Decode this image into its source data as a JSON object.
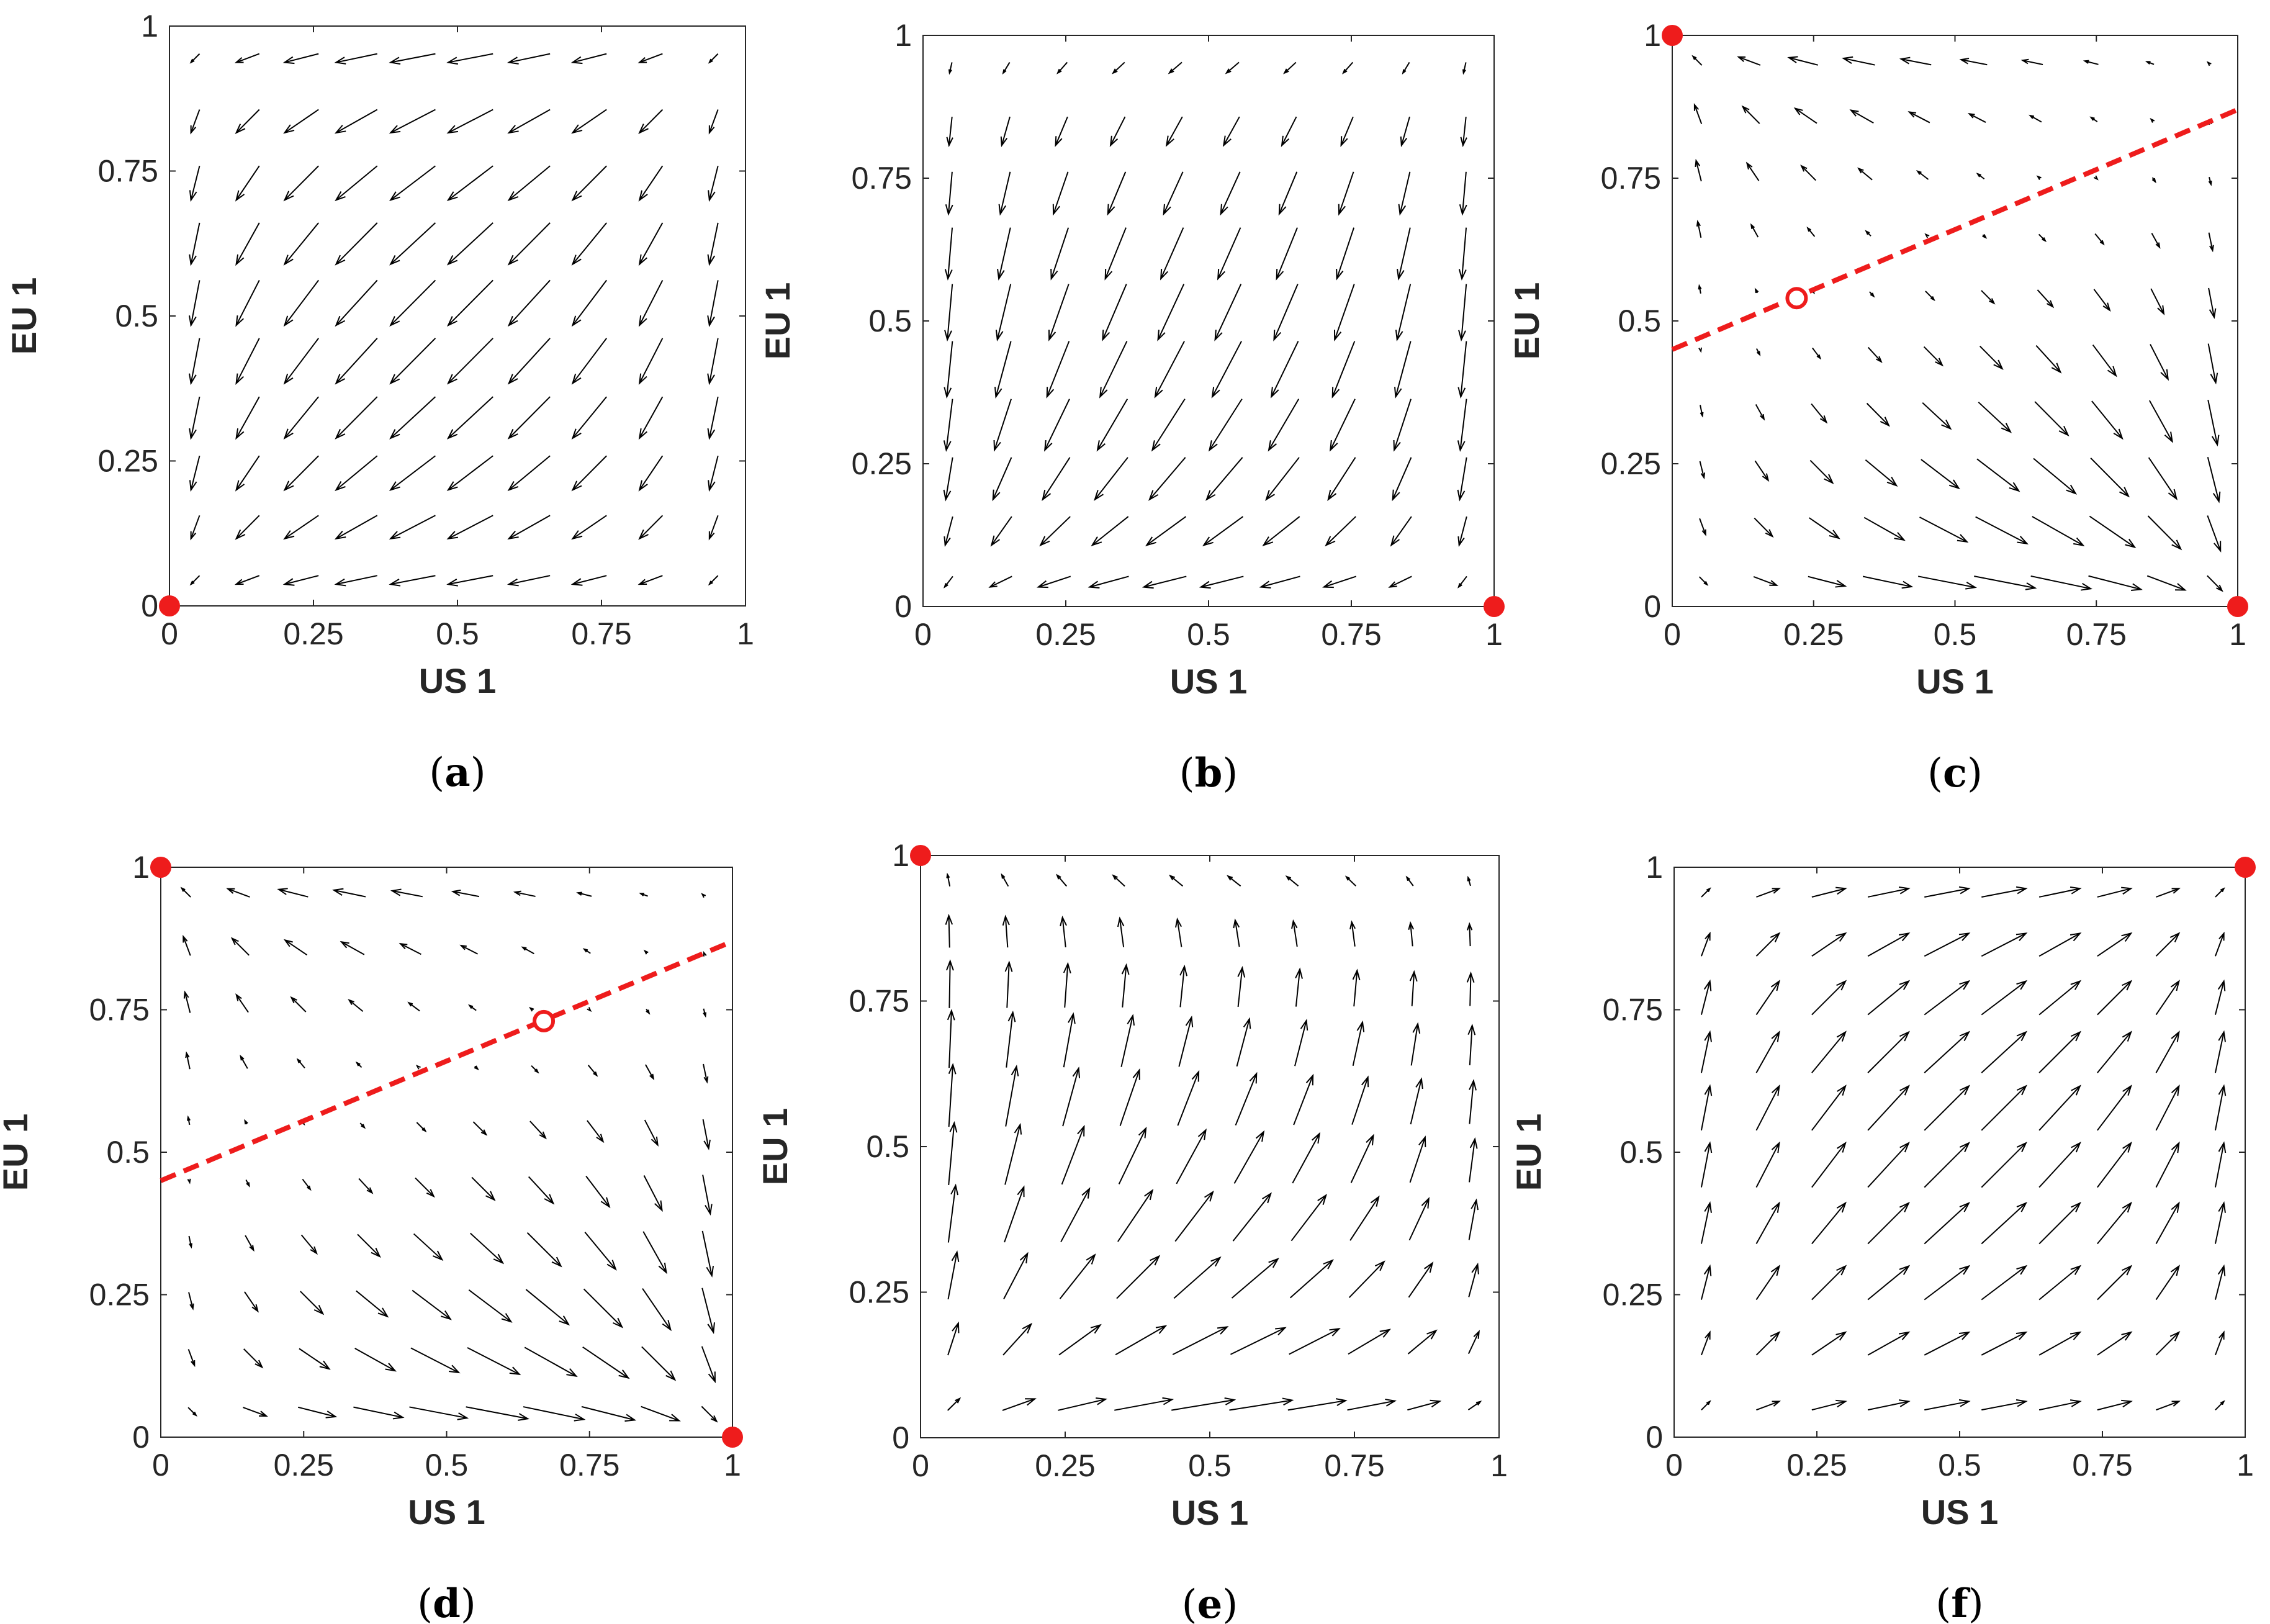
{
  "figure": {
    "arrow_color": "#000000",
    "marker_color": "#ee1c1c",
    "axis_color": "#262626"
  },
  "chart_data": [
    {
      "type": "quiver",
      "panel_id": "a",
      "caption_letter": "a",
      "xlabel": "US 1",
      "ylabel": "EU 1",
      "xlim": [
        0,
        1
      ],
      "ylim": [
        0,
        1
      ],
      "xticks": [
        "0",
        "0.25",
        "0.5",
        "0.75",
        "1"
      ],
      "yticks": [
        "0",
        "0.25",
        "0.5",
        "0.75",
        "1"
      ],
      "field": "sink_origin",
      "stable_points": [
        [
          0,
          0
        ]
      ],
      "unstable_points": [],
      "separatrix": null
    },
    {
      "type": "quiver",
      "panel_id": "b",
      "caption_letter": "b",
      "xlabel": "US 1",
      "ylabel": "EU 1",
      "xlim": [
        0,
        1
      ],
      "ylim": [
        0,
        1
      ],
      "xticks": [
        "0",
        "0.25",
        "0.5",
        "0.75",
        "1"
      ],
      "yticks": [
        "0",
        "0.25",
        "0.5",
        "0.75",
        "1"
      ],
      "field": "sink_right",
      "stable_points": [
        [
          1,
          0
        ]
      ],
      "unstable_points": [],
      "separatrix": null
    },
    {
      "type": "quiver",
      "panel_id": "c",
      "caption_letter": "c",
      "xlabel": "US 1",
      "ylabel": "EU 1",
      "xlim": [
        0,
        1
      ],
      "ylim": [
        0,
        1
      ],
      "xticks": [
        "0",
        "0.25",
        "0.5",
        "0.75",
        "1"
      ],
      "yticks": [
        "0",
        "0.25",
        "0.5",
        "0.75",
        "1"
      ],
      "field": "bistable",
      "stable_points": [
        [
          0,
          1
        ],
        [
          1,
          0
        ]
      ],
      "unstable_points": [
        [
          0.22,
          0.54
        ]
      ],
      "separatrix": [
        [
          0,
          0.45
        ],
        [
          1,
          0.87
        ]
      ]
    },
    {
      "type": "quiver",
      "panel_id": "d",
      "caption_letter": "d",
      "xlabel": "US 1",
      "ylabel": "EU 1",
      "xlim": [
        0,
        1
      ],
      "ylim": [
        0,
        1
      ],
      "xticks": [
        "0",
        "0.25",
        "0.5",
        "0.75",
        "1"
      ],
      "yticks": [
        "0",
        "0.25",
        "0.5",
        "0.75",
        "1"
      ],
      "field": "bistable",
      "stable_points": [
        [
          0,
          1
        ],
        [
          1,
          0
        ]
      ],
      "unstable_points": [
        [
          0.67,
          0.73
        ]
      ],
      "separatrix": [
        [
          0,
          0.45
        ],
        [
          1,
          0.87
        ]
      ]
    },
    {
      "type": "quiver",
      "panel_id": "e",
      "caption_letter": "e",
      "xlabel": "US 1",
      "ylabel": "EU 1",
      "xlim": [
        0,
        1
      ],
      "ylim": [
        0,
        1
      ],
      "xticks": [
        "0",
        "0.25",
        "0.5",
        "0.75",
        "1"
      ],
      "yticks": [
        "0",
        "0.25",
        "0.5",
        "0.75",
        "1"
      ],
      "field": "sink_topleft",
      "stable_points": [
        [
          0,
          1
        ]
      ],
      "unstable_points": [],
      "separatrix": null
    },
    {
      "type": "quiver",
      "panel_id": "f",
      "caption_letter": "f",
      "xlabel": "US 1",
      "ylabel": "EU 1",
      "xlim": [
        0,
        1
      ],
      "ylim": [
        0,
        1
      ],
      "xticks": [
        "0",
        "0.25",
        "0.5",
        "0.75",
        "1"
      ],
      "yticks": [
        "0",
        "0.25",
        "0.5",
        "0.75",
        "1"
      ],
      "field": "sink_topright",
      "stable_points": [
        [
          1,
          1
        ]
      ],
      "unstable_points": [],
      "separatrix": null
    }
  ]
}
